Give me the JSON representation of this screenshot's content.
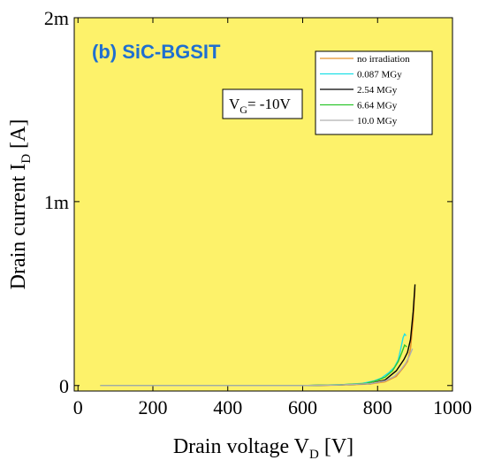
{
  "chart_data": {
    "type": "line",
    "panel_label": "(b) SiC-BGSIT",
    "xlabel": "Drain voltage V",
    "xlabel_sub": "D",
    "xlabel_unit": " [V]",
    "ylabel": "Drain current I",
    "ylabel_sub": "D",
    "ylabel_unit": " [A]",
    "annotation": {
      "main": "V",
      "sub": "G",
      "rest": "= -10V"
    },
    "xlim": [
      -10,
      1000
    ],
    "ylim": [
      -3e-05,
      0.002
    ],
    "x_ticks": [
      {
        "value": 0,
        "label": "0"
      },
      {
        "value": 200,
        "label": "200"
      },
      {
        "value": 400,
        "label": "400"
      },
      {
        "value": 600,
        "label": "600"
      },
      {
        "value": 800,
        "label": "800"
      },
      {
        "value": 1000,
        "label": "1000"
      }
    ],
    "y_ticks": [
      {
        "value": 0,
        "label": "0"
      },
      {
        "value": 0.001,
        "label": "1m"
      },
      {
        "value": 0.002,
        "label": "2m"
      }
    ],
    "background": "#fdf26a",
    "legend_position": "top-right",
    "series": [
      {
        "name": "no irradiation",
        "color": "#e8902a",
        "x": [
          60,
          200,
          400,
          600,
          700,
          780,
          820,
          850,
          870,
          880,
          888,
          895,
          900
        ],
        "y": [
          0,
          0,
          0,
          0,
          2e-06,
          8e-06,
          2e-05,
          5e-05,
          0.0001,
          0.00013,
          0.0002,
          0.00035,
          0.00053
        ]
      },
      {
        "name": "0.087 MGy",
        "color": "#1ee0e6",
        "x": [
          60,
          200,
          400,
          600,
          700,
          760,
          790,
          810,
          830,
          845,
          855,
          862,
          868,
          872,
          876
        ],
        "y": [
          0,
          0,
          0,
          0,
          4e-06,
          1.2e-05,
          2.5e-05,
          4e-05,
          7e-05,
          0.0001,
          0.00014,
          0.0002,
          0.00026,
          0.00028,
          0.00027
        ]
      },
      {
        "name": "2.54 MGy",
        "color": "#000000",
        "x": [
          60,
          200,
          400,
          600,
          700,
          780,
          820,
          850,
          870,
          880,
          888,
          895,
          900
        ],
        "y": [
          0,
          0,
          0,
          0,
          3e-06,
          1e-05,
          3e-05,
          8e-05,
          0.00014,
          0.00018,
          0.00025,
          0.0004,
          0.00055
        ]
      },
      {
        "name": "6.64 MGy",
        "color": "#2ec62e",
        "x": [
          60,
          200,
          400,
          600,
          700,
          770,
          800,
          820,
          840,
          855,
          865,
          872,
          878
        ],
        "y": [
          0,
          0,
          0,
          0,
          4e-06,
          1.2e-05,
          2.8e-05,
          4.5e-05,
          8e-05,
          0.00013,
          0.00018,
          0.00022,
          0.00021
        ]
      },
      {
        "name": "10.0 MGy",
        "color": "#b0b0b0",
        "x": [
          60,
          200,
          400,
          600,
          700,
          780,
          820,
          845,
          860,
          875,
          885,
          893
        ],
        "y": [
          0,
          0,
          0,
          0,
          3e-06,
          1e-05,
          2.5e-05,
          5e-05,
          8e-05,
          0.00012,
          0.00016,
          0.0002
        ]
      }
    ]
  }
}
